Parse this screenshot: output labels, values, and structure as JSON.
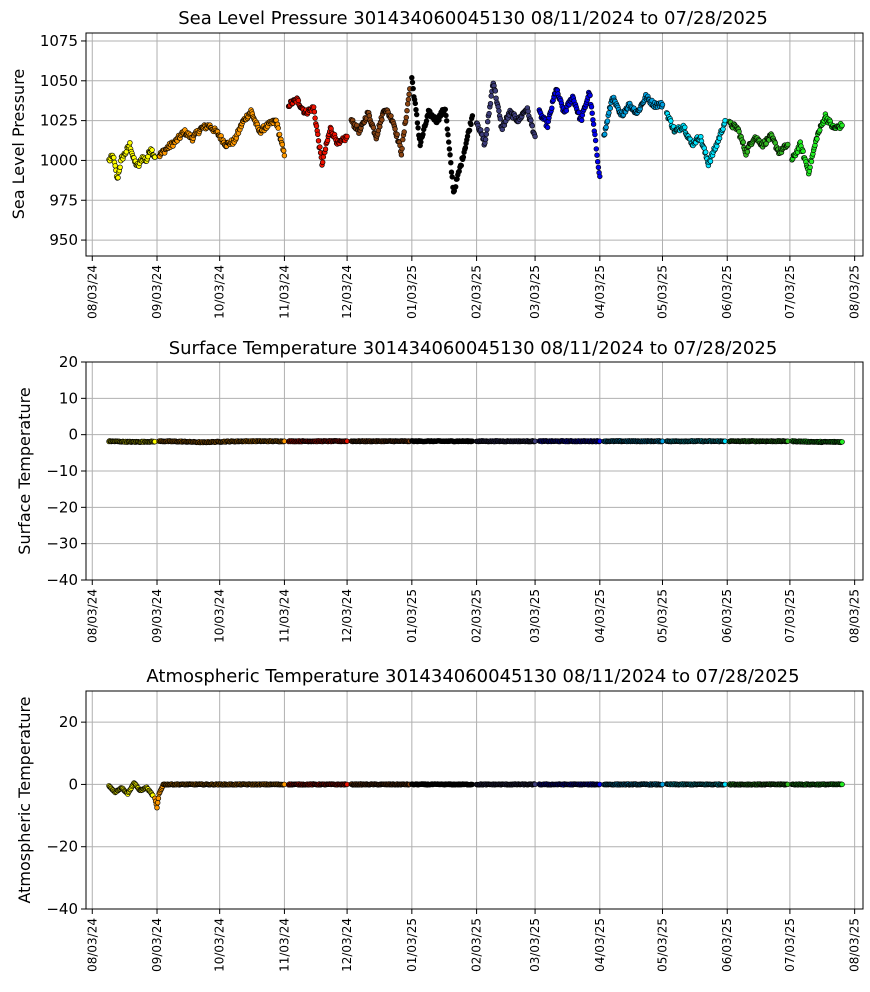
{
  "chart_data": [
    {
      "type": "scatter",
      "title": "Sea Level Pressure 301434060045130  08/11/2024 to 07/28/2025",
      "xlabel": "",
      "ylabel": "Sea Level Pressure",
      "ylim": [
        940,
        1080
      ],
      "yticks": [
        950,
        975,
        1000,
        1025,
        1050,
        1075
      ],
      "xlim": [
        "2024-07-31",
        "2025-08-07"
      ],
      "xticks": [
        "08/03/24",
        "09/03/24",
        "10/03/24",
        "11/03/24",
        "12/03/24",
        "01/03/25",
        "02/03/25",
        "03/03/25",
        "04/03/25",
        "05/03/25",
        "06/03/25",
        "07/03/25",
        "08/03/25"
      ],
      "grid": true,
      "series": [
        {
          "color": "#ffff00",
          "x": [
            "2024-08-11",
            "2024-08-13",
            "2024-08-15",
            "2024-08-17",
            "2024-08-19",
            "2024-08-21",
            "2024-08-23",
            "2024-08-25",
            "2024-08-27",
            "2024-08-29",
            "2024-08-31",
            "2024-09-02"
          ],
          "values": [
            1000,
            1003,
            988,
            1001,
            1005,
            1010,
            1000,
            996,
            1002,
            1000,
            1008,
            1002
          ]
        },
        {
          "color": "#ff9900",
          "x": [
            "2024-09-04",
            "2024-09-08",
            "2024-09-12",
            "2024-09-16",
            "2024-09-20",
            "2024-09-24",
            "2024-09-28",
            "2024-10-02",
            "2024-10-06",
            "2024-10-10",
            "2024-10-14",
            "2024-10-18",
            "2024-10-22",
            "2024-10-26",
            "2024-10-30",
            "2024-11-03"
          ],
          "values": [
            1003,
            1008,
            1012,
            1018,
            1014,
            1020,
            1022,
            1017,
            1010,
            1012,
            1024,
            1031,
            1018,
            1022,
            1025,
            1003
          ]
        },
        {
          "color": "#ee1100",
          "x": [
            "2024-11-05",
            "2024-11-09",
            "2024-11-13",
            "2024-11-17",
            "2024-11-21",
            "2024-11-25",
            "2024-11-29",
            "2024-12-03"
          ],
          "values": [
            1035,
            1038,
            1030,
            1033,
            998,
            1020,
            1010,
            1015
          ]
        },
        {
          "color": "#8b4513",
          "x": [
            "2024-12-05",
            "2024-12-09",
            "2024-12-13",
            "2024-12-17",
            "2024-12-21",
            "2024-12-25",
            "2024-12-29",
            "2025-01-02"
          ],
          "values": [
            1025,
            1018,
            1030,
            1015,
            1033,
            1025,
            1005,
            1045
          ]
        },
        {
          "color": "#000000",
          "x": [
            "2025-01-03",
            "2025-01-07",
            "2025-01-11",
            "2025-01-15",
            "2025-01-19",
            "2025-01-23",
            "2025-01-27",
            "2025-02-01"
          ],
          "values": [
            1052,
            1010,
            1030,
            1025,
            1033,
            980,
            1000,
            1028
          ]
        },
        {
          "color": "#3d3d7a",
          "x": [
            "2025-02-03",
            "2025-02-07",
            "2025-02-11",
            "2025-02-15",
            "2025-02-19",
            "2025-02-23",
            "2025-02-27",
            "2025-03-03"
          ],
          "values": [
            1025,
            1010,
            1050,
            1020,
            1030,
            1025,
            1033,
            1015
          ]
        },
        {
          "color": "#0000ee",
          "x": [
            "2025-03-05",
            "2025-03-09",
            "2025-03-13",
            "2025-03-17",
            "2025-03-21",
            "2025-03-25",
            "2025-03-29",
            "2025-04-03"
          ],
          "values": [
            1030,
            1022,
            1045,
            1030,
            1040,
            1025,
            1043,
            990
          ]
        },
        {
          "color": "#00a0e0",
          "x": [
            "2025-04-05",
            "2025-04-09",
            "2025-04-13",
            "2025-04-17",
            "2025-04-21",
            "2025-04-25",
            "2025-04-29",
            "2025-05-03"
          ],
          "values": [
            1015,
            1040,
            1028,
            1035,
            1030,
            1040,
            1035,
            1035
          ]
        },
        {
          "color": "#00e5ff",
          "x": [
            "2025-05-05",
            "2025-05-09",
            "2025-05-13",
            "2025-05-17",
            "2025-05-21",
            "2025-05-25",
            "2025-05-29",
            "2025-06-02"
          ],
          "values": [
            1030,
            1018,
            1022,
            1010,
            1015,
            998,
            1010,
            1025
          ]
        },
        {
          "color": "#33bb22",
          "x": [
            "2025-06-04",
            "2025-06-08",
            "2025-06-12",
            "2025-06-16",
            "2025-06-20",
            "2025-06-24",
            "2025-06-28",
            "2025-07-02"
          ],
          "values": [
            1023,
            1020,
            1005,
            1015,
            1010,
            1015,
            1005,
            1010
          ]
        },
        {
          "color": "#22ee22",
          "x": [
            "2025-07-04",
            "2025-07-08",
            "2025-07-12",
            "2025-07-16",
            "2025-07-20",
            "2025-07-24",
            "2025-07-28"
          ],
          "values": [
            1000,
            1010,
            993,
            1015,
            1028,
            1020,
            1022
          ]
        }
      ]
    },
    {
      "type": "scatter",
      "title": "Surface Temperature 301434060045130  08/11/2024 to 07/28/2025",
      "xlabel": "",
      "ylabel": "Surface Temperature",
      "ylim": [
        -40,
        20
      ],
      "yticks": [
        -40,
        -30,
        -20,
        -10,
        0,
        10,
        20
      ],
      "xlim": [
        "2024-07-31",
        "2025-08-07"
      ],
      "xticks": [
        "08/03/24",
        "09/03/24",
        "10/03/24",
        "11/03/24",
        "12/03/24",
        "01/03/25",
        "02/03/25",
        "03/03/25",
        "04/03/25",
        "05/03/25",
        "06/03/25",
        "07/03/25",
        "08/03/25"
      ],
      "grid": true,
      "series": [
        {
          "color": "#ffff00",
          "x": [
            "2024-08-11",
            "2024-08-22",
            "2024-09-02"
          ],
          "values": [
            -1.8,
            -2.0,
            -1.9
          ]
        },
        {
          "color": "#ff9900",
          "x": [
            "2024-09-04",
            "2024-09-15",
            "2024-09-25",
            "2024-10-05",
            "2024-10-15",
            "2024-10-25",
            "2024-11-03"
          ],
          "values": [
            -1.8,
            -1.9,
            -2.1,
            -1.9,
            -1.8,
            -1.8,
            -1.8
          ]
        },
        {
          "color": "#ee1100",
          "x": [
            "2024-11-05",
            "2024-11-19",
            "2024-12-03"
          ],
          "values": [
            -1.8,
            -1.8,
            -1.8
          ]
        },
        {
          "color": "#8b4513",
          "x": [
            "2024-12-05",
            "2024-12-19",
            "2025-01-02"
          ],
          "values": [
            -1.8,
            -1.8,
            -1.8
          ]
        },
        {
          "color": "#000000",
          "x": [
            "2025-01-03",
            "2025-01-17",
            "2025-02-01"
          ],
          "values": [
            -1.8,
            -1.8,
            -1.8
          ]
        },
        {
          "color": "#3d3d7a",
          "x": [
            "2025-02-03",
            "2025-02-17",
            "2025-03-03"
          ],
          "values": [
            -1.8,
            -1.8,
            -1.8
          ]
        },
        {
          "color": "#0000ee",
          "x": [
            "2025-03-05",
            "2025-03-19",
            "2025-04-03"
          ],
          "values": [
            -1.8,
            -1.8,
            -1.8
          ]
        },
        {
          "color": "#00a0e0",
          "x": [
            "2025-04-05",
            "2025-04-19",
            "2025-05-03"
          ],
          "values": [
            -1.8,
            -1.8,
            -1.8
          ]
        },
        {
          "color": "#00e5ff",
          "x": [
            "2025-05-05",
            "2025-05-19",
            "2025-06-02"
          ],
          "values": [
            -1.8,
            -1.8,
            -1.8
          ]
        },
        {
          "color": "#33bb22",
          "x": [
            "2025-06-04",
            "2025-06-18",
            "2025-07-02"
          ],
          "values": [
            -1.8,
            -1.8,
            -1.8
          ]
        },
        {
          "color": "#22ee22",
          "x": [
            "2025-07-04",
            "2025-07-16",
            "2025-07-28"
          ],
          "values": [
            -1.8,
            -2.0,
            -2.0
          ]
        }
      ]
    },
    {
      "type": "scatter",
      "title": "Atmospheric Temperature 301434060045130  08/11/2024 to 07/28/2025",
      "xlabel": "",
      "ylabel": "Atmospheric Temperature",
      "ylim": [
        -40,
        30
      ],
      "yticks": [
        -40,
        -20,
        0,
        20
      ],
      "xlim": [
        "2024-07-31",
        "2025-08-07"
      ],
      "xticks": [
        "08/03/24",
        "09/03/24",
        "10/03/24",
        "11/03/24",
        "12/03/24",
        "01/03/25",
        "02/03/25",
        "03/03/25",
        "04/03/25",
        "05/03/25",
        "06/03/25",
        "07/03/25",
        "08/03/25"
      ],
      "grid": true,
      "series": [
        {
          "color": "#ffff00",
          "x": [
            "2024-08-11",
            "2024-08-14",
            "2024-08-17",
            "2024-08-20",
            "2024-08-23",
            "2024-08-26",
            "2024-08-29",
            "2024-09-01"
          ],
          "values": [
            -0.5,
            -2.5,
            -1.0,
            -3.0,
            0.5,
            -2.0,
            -1.0,
            -3.5
          ]
        },
        {
          "color": "#ff9900",
          "x": [
            "2024-09-02",
            "2024-09-03",
            "2024-09-04",
            "2024-09-06",
            "2024-09-15",
            "2024-09-25",
            "2024-10-05",
            "2024-10-15",
            "2024-10-25",
            "2024-11-03"
          ],
          "values": [
            -4.5,
            -7.5,
            -3.0,
            0,
            0,
            0,
            0,
            0,
            0,
            0
          ]
        },
        {
          "color": "#ee1100",
          "x": [
            "2024-11-05",
            "2024-11-19",
            "2024-12-03"
          ],
          "values": [
            0,
            0,
            0
          ]
        },
        {
          "color": "#8b4513",
          "x": [
            "2024-12-05",
            "2024-12-19",
            "2025-01-02"
          ],
          "values": [
            0,
            0,
            0
          ]
        },
        {
          "color": "#000000",
          "x": [
            "2025-01-03",
            "2025-01-17",
            "2025-02-01"
          ],
          "values": [
            0,
            0,
            0
          ]
        },
        {
          "color": "#3d3d7a",
          "x": [
            "2025-02-03",
            "2025-02-17",
            "2025-03-03"
          ],
          "values": [
            0,
            0,
            0
          ]
        },
        {
          "color": "#0000ee",
          "x": [
            "2025-03-05",
            "2025-03-19",
            "2025-04-03"
          ],
          "values": [
            0,
            0,
            0
          ]
        },
        {
          "color": "#00a0e0",
          "x": [
            "2025-04-05",
            "2025-04-19",
            "2025-05-03"
          ],
          "values": [
            0,
            0,
            0
          ]
        },
        {
          "color": "#00e5ff",
          "x": [
            "2025-05-05",
            "2025-05-19",
            "2025-06-02"
          ],
          "values": [
            0,
            0,
            0
          ]
        },
        {
          "color": "#33bb22",
          "x": [
            "2025-06-04",
            "2025-06-18",
            "2025-07-02"
          ],
          "values": [
            0,
            0,
            0
          ]
        },
        {
          "color": "#22ee22",
          "x": [
            "2025-07-04",
            "2025-07-16",
            "2025-07-28"
          ],
          "values": [
            0,
            0,
            0
          ]
        }
      ]
    }
  ]
}
